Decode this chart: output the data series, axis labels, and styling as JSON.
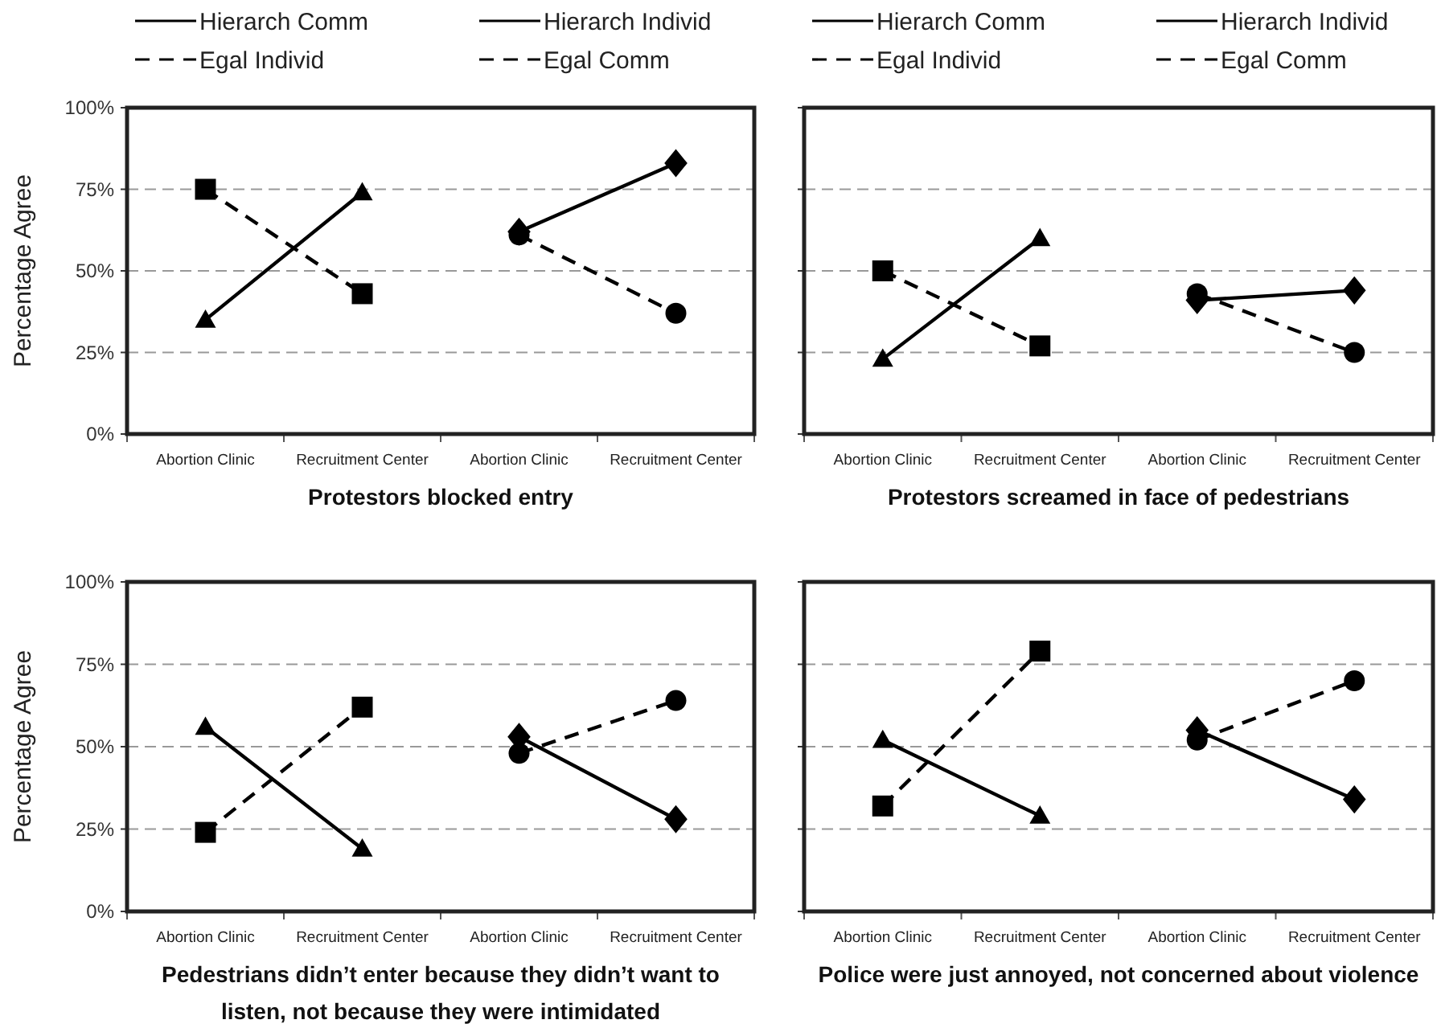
{
  "chart_data": [
    {
      "type": "line",
      "xlabel": "Protestors blocked entry",
      "ylabel": "Percentage Agree",
      "categories": [
        "Abortion Clinic",
        "Recruitment Center",
        "Abortion Clinic",
        "Recruitment Center"
      ],
      "ylim": [
        0,
        100
      ],
      "yticks": [
        {
          "value": 0,
          "label": "0%"
        },
        {
          "value": 25,
          "label": "25%"
        },
        {
          "value": 50,
          "label": "50%"
        },
        {
          "value": 75,
          "label": "75%"
        },
        {
          "value": 100,
          "label": "100%"
        }
      ],
      "grid": "y",
      "legend": "top",
      "series": [
        {
          "name": "Hierarch Comm",
          "color": "#000000",
          "marker": "triangle",
          "line_style": "solid",
          "values": [
            35,
            74,
            null,
            null
          ]
        },
        {
          "name": "Hierarch Individ",
          "color": "#000000",
          "marker": "diamond",
          "line_style": "solid",
          "values": [
            null,
            null,
            62,
            83
          ]
        },
        {
          "name": "Egal Individ",
          "color": "#000000",
          "marker": "square",
          "line_style": "dashed",
          "values": [
            75,
            43,
            null,
            null
          ]
        },
        {
          "name": "Egal Comm",
          "color": "#000000",
          "marker": "circle",
          "line_style": "dashed",
          "values": [
            null,
            null,
            61,
            37
          ]
        }
      ]
    },
    {
      "type": "line",
      "xlabel": "Protestors screamed in face of pedestrians",
      "categories": [
        "Abortion Clinic",
        "Recruitment Center",
        "Abortion Clinic",
        "Recruitment Center"
      ],
      "ylim": [
        0,
        100
      ],
      "yticks": [
        {
          "value": 0,
          "label": null
        },
        {
          "value": 25,
          "label": null
        },
        {
          "value": 50,
          "label": null
        },
        {
          "value": 75,
          "label": null
        },
        {
          "value": 100,
          "label": null
        }
      ],
      "tick_labels": "x",
      "grid": "y",
      "legend": "top",
      "series": [
        {
          "name": "Hierarch Comm",
          "color": "#000000",
          "marker": "triangle",
          "line_style": "solid",
          "values": [
            23,
            60,
            null,
            null
          ]
        },
        {
          "name": "Hierarch Individ",
          "color": "#000000",
          "marker": "diamond",
          "line_style": "solid",
          "values": [
            null,
            null,
            41,
            44
          ]
        },
        {
          "name": "Egal Individ",
          "color": "#000000",
          "marker": "square",
          "line_style": "dashed",
          "values": [
            50,
            27,
            null,
            null
          ]
        },
        {
          "name": "Egal Comm",
          "color": "#000000",
          "marker": "circle",
          "line_style": "dashed",
          "values": [
            null,
            null,
            43,
            25
          ]
        }
      ]
    },
    {
      "type": "line",
      "xlabel": "Pedestrians didn’t enter because they didn’t want to listen, not because they were intimidated",
      "ylabel": "Percentage Agree",
      "categories": [
        "Abortion Clinic",
        "Recruitment Center",
        "Abortion Clinic",
        "Recruitment Center"
      ],
      "ylim": [
        0,
        100
      ],
      "yticks": [
        {
          "value": 0,
          "label": "0%"
        },
        {
          "value": 25,
          "label": "25%"
        },
        {
          "value": 50,
          "label": "50%"
        },
        {
          "value": 75,
          "label": "75%"
        },
        {
          "value": 100,
          "label": "100%"
        }
      ],
      "grid": "y",
      "series": [
        {
          "color": "#000000",
          "marker": "triangle",
          "line_style": "solid",
          "values": [
            56,
            19,
            null,
            null
          ]
        },
        {
          "color": "#000000",
          "marker": "diamond",
          "line_style": "solid",
          "values": [
            null,
            null,
            53,
            28
          ]
        },
        {
          "color": "#000000",
          "marker": "square",
          "line_style": "dashed",
          "values": [
            24,
            62,
            null,
            null
          ]
        },
        {
          "color": "#000000",
          "marker": "circle",
          "line_style": "dashed",
          "values": [
            null,
            null,
            48,
            64
          ]
        }
      ]
    },
    {
      "type": "line",
      "xlabel": "Police were just annoyed, not concerned about violence",
      "categories": [
        "Abortion Clinic",
        "Recruitment Center",
        "Abortion Clinic",
        "Recruitment Center"
      ],
      "ylim": [
        0,
        100
      ],
      "yticks": [
        {
          "value": 0,
          "label": null
        },
        {
          "value": 25,
          "label": null
        },
        {
          "value": 50,
          "label": null
        },
        {
          "value": 75,
          "label": null
        },
        {
          "value": 100,
          "label": null
        }
      ],
      "tick_labels": "x",
      "grid": "y",
      "series": [
        {
          "color": "#000000",
          "marker": "triangle",
          "line_style": "solid",
          "values": [
            52,
            29,
            null,
            null
          ]
        },
        {
          "color": "#000000",
          "marker": "diamond",
          "line_style": "solid",
          "values": [
            null,
            null,
            55,
            34
          ]
        },
        {
          "color": "#000000",
          "marker": "square",
          "line_style": "dashed",
          "values": [
            32,
            79,
            null,
            null
          ]
        },
        {
          "color": "#000000",
          "marker": "circle",
          "line_style": "dashed",
          "values": [
            null,
            null,
            52,
            70
          ]
        }
      ]
    }
  ]
}
